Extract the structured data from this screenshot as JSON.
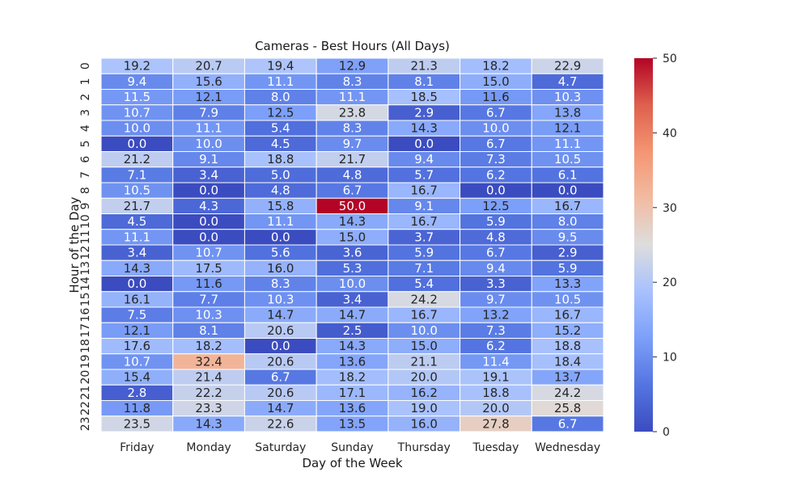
{
  "chart_data": {
    "type": "heatmap",
    "title": "Cameras - Best Hours (All Days)",
    "xlabel": "Day of the Week",
    "ylabel": "Hour of the Day",
    "x_categories": [
      "Friday",
      "Monday",
      "Saturday",
      "Sunday",
      "Thursday",
      "Tuesday",
      "Wednesday"
    ],
    "y_categories": [
      "0",
      "1",
      "2",
      "3",
      "4",
      "5",
      "6",
      "7",
      "8",
      "9",
      "10",
      "11",
      "12",
      "13",
      "14",
      "15",
      "16",
      "17",
      "18",
      "19",
      "20",
      "21",
      "22",
      "23"
    ],
    "values": [
      [
        19.2,
        20.7,
        19.4,
        12.9,
        21.3,
        18.2,
        22.9
      ],
      [
        9.4,
        15.6,
        11.1,
        8.3,
        8.1,
        15.0,
        4.7
      ],
      [
        11.5,
        12.1,
        8.0,
        11.1,
        18.5,
        11.6,
        10.3
      ],
      [
        10.7,
        7.9,
        12.5,
        23.8,
        2.9,
        6.7,
        13.8
      ],
      [
        10.0,
        11.1,
        5.4,
        8.3,
        14.3,
        10.0,
        12.1
      ],
      [
        0.0,
        10.0,
        4.5,
        9.7,
        0.0,
        6.7,
        11.1
      ],
      [
        21.2,
        9.1,
        18.8,
        21.7,
        9.4,
        7.3,
        10.5
      ],
      [
        7.1,
        3.4,
        5.0,
        4.8,
        5.7,
        6.2,
        6.1
      ],
      [
        10.5,
        0.0,
        4.8,
        6.7,
        16.7,
        0.0,
        0.0
      ],
      [
        21.7,
        4.3,
        15.8,
        50.0,
        9.1,
        12.5,
        16.7
      ],
      [
        4.5,
        0.0,
        11.1,
        14.3,
        16.7,
        5.9,
        8.0
      ],
      [
        11.1,
        0.0,
        0.0,
        15.0,
        3.7,
        4.8,
        9.5
      ],
      [
        3.4,
        10.7,
        5.6,
        3.6,
        5.9,
        6.7,
        2.9
      ],
      [
        14.3,
        17.5,
        16.0,
        5.3,
        7.1,
        9.4,
        5.9
      ],
      [
        0.0,
        11.6,
        8.3,
        10.0,
        5.4,
        3.3,
        13.3
      ],
      [
        16.1,
        7.7,
        10.3,
        3.4,
        24.2,
        9.7,
        10.5
      ],
      [
        7.5,
        10.3,
        14.7,
        14.7,
        16.7,
        13.2,
        16.7
      ],
      [
        12.1,
        8.1,
        20.6,
        2.5,
        10.0,
        7.3,
        15.2
      ],
      [
        17.6,
        18.2,
        0.0,
        14.3,
        15.0,
        6.2,
        18.8
      ],
      [
        10.7,
        32.4,
        20.6,
        13.6,
        21.1,
        11.4,
        18.4
      ],
      [
        15.4,
        21.4,
        6.7,
        18.2,
        20.0,
        19.1,
        13.7
      ],
      [
        2.8,
        22.2,
        20.6,
        17.1,
        16.2,
        18.8,
        24.2
      ],
      [
        11.8,
        23.3,
        14.7,
        13.6,
        19.0,
        20.0,
        25.8
      ],
      [
        23.5,
        14.3,
        22.6,
        13.5,
        16.0,
        27.8,
        6.7
      ]
    ],
    "vmin": 0,
    "vmax": 50,
    "colormap": "coolwarm",
    "colorbar_ticks": [
      0,
      10,
      20,
      30,
      40,
      50
    ]
  }
}
